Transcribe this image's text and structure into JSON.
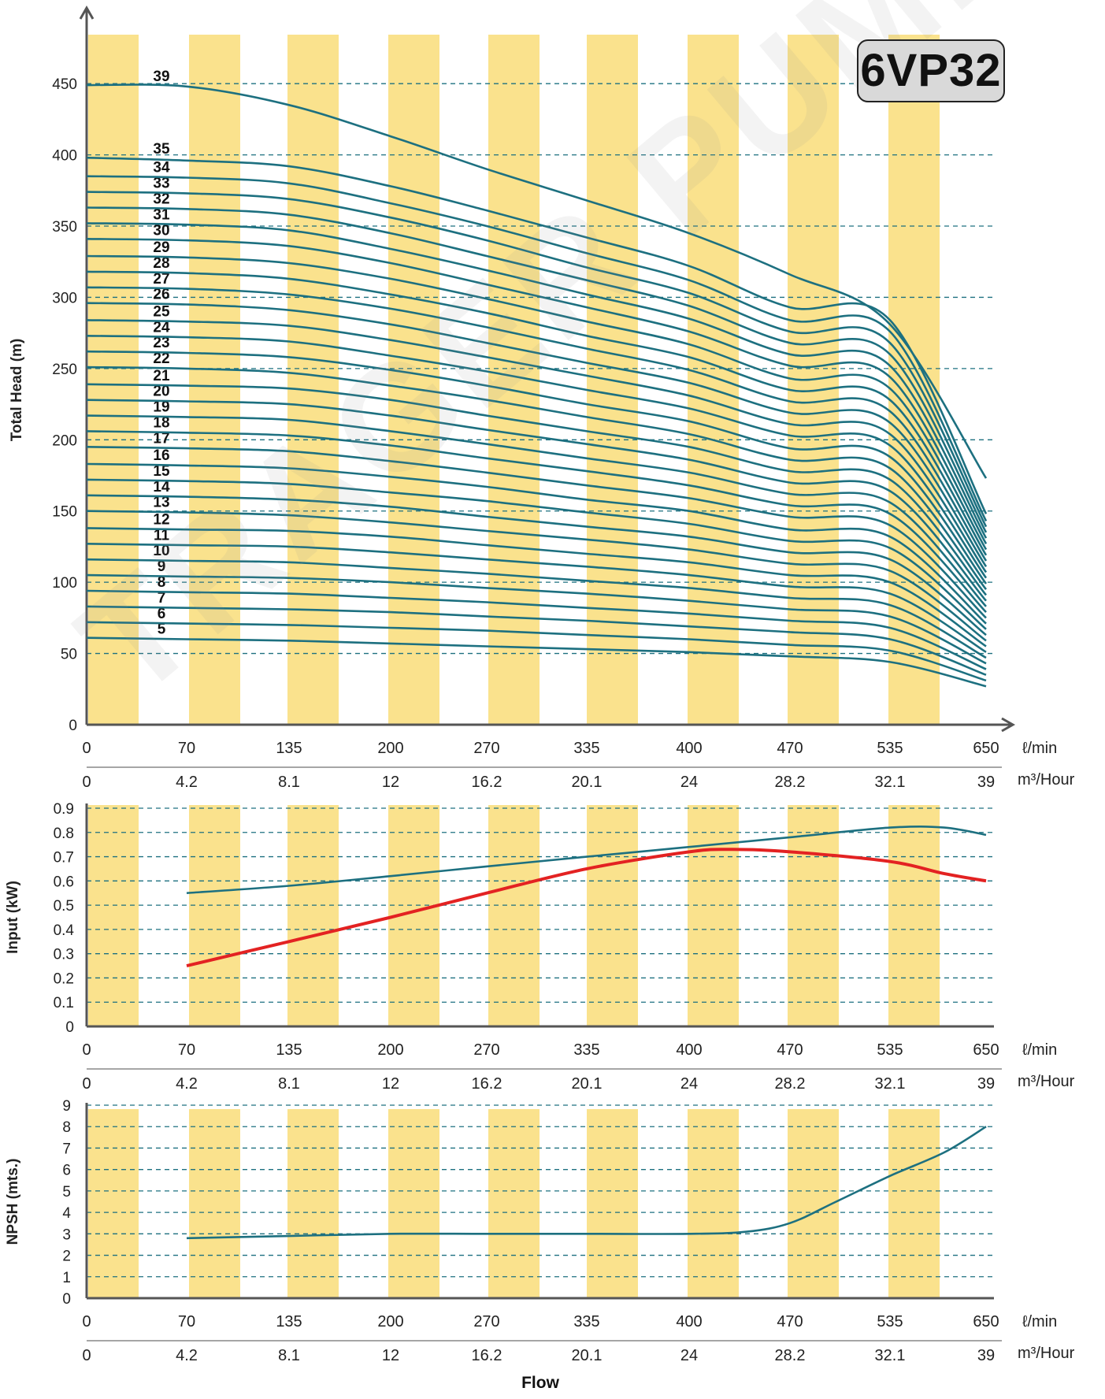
{
  "badge": "6VP32",
  "watermark": "TRAGER PUMPS",
  "colors": {
    "band": "#fae28d",
    "curve": "#1d7080",
    "power_red": "#e32222",
    "grid": "#1d7080",
    "axis": "#555555"
  },
  "chart_data": [
    {
      "type": "line",
      "id": "head",
      "ylabel": "Total Head (m)",
      "xlabel": "",
      "x_ticks": [
        0,
        70,
        135,
        200,
        270,
        335,
        400,
        470,
        535,
        650
      ],
      "x_ticks_m3h": [
        "0",
        "4.2",
        "8.1",
        "12",
        "16.2",
        "20.1",
        "24",
        "28.2",
        "32.1",
        "39"
      ],
      "x_unit_lmin": "ℓ/min",
      "x_unit_m3h": "m³/Hour",
      "y_ticks": [
        0,
        50,
        100,
        150,
        200,
        250,
        300,
        350,
        400,
        450
      ],
      "ylim": [
        0,
        470
      ],
      "grid": "dashed horizontal",
      "curve_x": [
        0,
        70,
        135,
        200,
        270,
        335,
        400,
        470,
        535,
        650
      ],
      "stage_series": [
        {
          "name": "5",
          "values": [
            61,
            60,
            59,
            57,
            55,
            53,
            51,
            48,
            44,
            27
          ]
        },
        {
          "name": "6",
          "values": [
            72,
            71,
            70,
            68,
            66,
            63,
            60,
            56,
            52,
            31
          ]
        },
        {
          "name": "7",
          "values": [
            83,
            82,
            81,
            79,
            76,
            73,
            69,
            65,
            60,
            35
          ]
        },
        {
          "name": "8",
          "values": [
            94,
            93,
            92,
            89,
            86,
            82,
            78,
            73,
            68,
            39
          ]
        },
        {
          "name": "9",
          "values": [
            105,
            104,
            103,
            100,
            96,
            92,
            87,
            81,
            76,
            43
          ]
        },
        {
          "name": "10",
          "values": [
            116,
            115,
            114,
            110,
            106,
            101,
            96,
            89,
            84,
            47
          ]
        },
        {
          "name": "11",
          "values": [
            127,
            126,
            125,
            121,
            116,
            111,
            105,
            97,
            92,
            51
          ]
        },
        {
          "name": "12",
          "values": [
            138,
            137,
            136,
            132,
            126,
            120,
            114,
            105,
            100,
            55
          ]
        },
        {
          "name": "13",
          "values": [
            150,
            149,
            147,
            142,
            136,
            130,
            123,
            113,
            108,
            59
          ]
        },
        {
          "name": "14",
          "values": [
            161,
            160,
            158,
            153,
            146,
            139,
            132,
            121,
            116,
            63
          ]
        },
        {
          "name": "15",
          "values": [
            172,
            171,
            169,
            163,
            157,
            149,
            141,
            129,
            124,
            67
          ]
        },
        {
          "name": "16",
          "values": [
            183,
            182,
            180,
            174,
            167,
            158,
            150,
            137,
            132,
            71
          ]
        },
        {
          "name": "17",
          "values": [
            195,
            194,
            192,
            185,
            177,
            168,
            159,
            146,
            140,
            75
          ]
        },
        {
          "name": "18",
          "values": [
            206,
            205,
            203,
            196,
            187,
            178,
            168,
            154,
            148,
            79
          ]
        },
        {
          "name": "19",
          "values": [
            217,
            216,
            214,
            206,
            197,
            187,
            177,
            162,
            156,
            83
          ]
        },
        {
          "name": "20",
          "values": [
            228,
            227,
            225,
            217,
            207,
            197,
            186,
            170,
            164,
            87
          ]
        },
        {
          "name": "21",
          "values": [
            239,
            238,
            236,
            228,
            217,
            206,
            195,
            178,
            172,
            91
          ]
        },
        {
          "name": "22",
          "values": [
            251,
            250,
            247,
            238,
            228,
            216,
            204,
            186,
            180,
            95
          ]
        },
        {
          "name": "23",
          "values": [
            262,
            261,
            258,
            249,
            238,
            225,
            213,
            194,
            188,
            99
          ]
        },
        {
          "name": "24",
          "values": [
            273,
            272,
            269,
            259,
            248,
            235,
            222,
            203,
            196,
            103
          ]
        },
        {
          "name": "25",
          "values": [
            284,
            283,
            280,
            270,
            258,
            245,
            231,
            211,
            204,
            107
          ]
        },
        {
          "name": "26",
          "values": [
            296,
            295,
            291,
            281,
            268,
            254,
            240,
            219,
            212,
            111
          ]
        },
        {
          "name": "27",
          "values": [
            307,
            306,
            302,
            292,
            279,
            264,
            249,
            227,
            220,
            115
          ]
        },
        {
          "name": "28",
          "values": [
            318,
            317,
            313,
            302,
            289,
            273,
            258,
            235,
            228,
            119
          ]
        },
        {
          "name": "29",
          "values": [
            329,
            328,
            324,
            313,
            299,
            283,
            267,
            243,
            236,
            123
          ]
        },
        {
          "name": "30",
          "values": [
            341,
            340,
            336,
            324,
            309,
            293,
            276,
            252,
            244,
            127
          ]
        },
        {
          "name": "31",
          "values": [
            352,
            351,
            347,
            334,
            319,
            302,
            285,
            260,
            252,
            131
          ]
        },
        {
          "name": "32",
          "values": [
            363,
            362,
            358,
            345,
            329,
            312,
            294,
            268,
            260,
            135
          ]
        },
        {
          "name": "33",
          "values": [
            374,
            373,
            369,
            356,
            340,
            321,
            303,
            276,
            268,
            139
          ]
        },
        {
          "name": "34",
          "values": [
            385,
            384,
            380,
            366,
            350,
            331,
            312,
            284,
            276,
            143
          ]
        },
        {
          "name": "35",
          "values": [
            398,
            396,
            392,
            378,
            361,
            342,
            322,
            293,
            284,
            148
          ]
        },
        {
          "name": "39",
          "values": [
            449,
            448,
            435,
            413,
            390,
            368,
            345,
            316,
            281,
            173
          ]
        }
      ]
    },
    {
      "type": "line",
      "id": "input",
      "ylabel": "Input (kW)",
      "x_ticks": [
        0,
        70,
        135,
        200,
        270,
        335,
        400,
        470,
        535,
        650
      ],
      "x_ticks_m3h": [
        "0",
        "4.2",
        "8.1",
        "12",
        "16.2",
        "20.1",
        "24",
        "28.2",
        "32.1",
        "39"
      ],
      "x_unit_lmin": "ℓ/min",
      "x_unit_m3h": "m³/Hour",
      "y_ticks": [
        "0",
        "0.1",
        "0.2",
        "0.3",
        "0.4",
        "0.5",
        "0.6",
        "0.7",
        "0.8",
        "0.9"
      ],
      "ylim": [
        0,
        0.9
      ],
      "series": [
        {
          "x": [
            70,
            135,
            200,
            270,
            335,
            400,
            470,
            535,
            600,
            650
          ],
          "values": [
            0.55,
            0.58,
            0.62,
            0.66,
            0.7,
            0.74,
            0.78,
            0.82,
            0.82,
            0.79
          ]
        },
        {
          "x": [
            70,
            135,
            200,
            270,
            335,
            400,
            430,
            470,
            535,
            600,
            650
          ],
          "values": [
            0.25,
            0.35,
            0.45,
            0.55,
            0.65,
            0.72,
            0.73,
            0.72,
            0.68,
            0.63,
            0.6
          ]
        }
      ]
    },
    {
      "type": "line",
      "id": "npsh",
      "ylabel": "NPSH (mts.)",
      "xlabel": "Flow",
      "x_ticks": [
        0,
        70,
        135,
        200,
        270,
        335,
        400,
        470,
        535,
        650
      ],
      "x_ticks_m3h": [
        "0",
        "4.2",
        "8.1",
        "12",
        "16.2",
        "20.1",
        "24",
        "28.2",
        "32.1",
        "39"
      ],
      "x_unit_lmin": "ℓ/min",
      "x_unit_m3h": "m³/Hour",
      "y_ticks": [
        "0",
        "1",
        "2",
        "3",
        "4",
        "5",
        "6",
        "7",
        "8",
        "9"
      ],
      "ylim": [
        0,
        9
      ],
      "series": [
        {
          "x": [
            70,
            135,
            200,
            270,
            335,
            400,
            440,
            470,
            500,
            535,
            600,
            650
          ],
          "values": [
            2.8,
            2.9,
            3.0,
            3.0,
            3.0,
            3.0,
            3.1,
            3.5,
            4.5,
            5.7,
            6.8,
            8.0
          ]
        }
      ]
    }
  ]
}
